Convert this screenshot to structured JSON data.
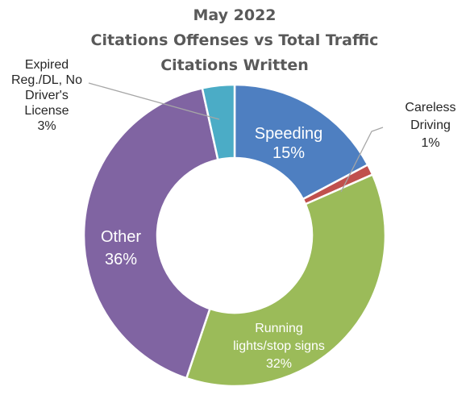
{
  "chart_data": {
    "type": "pie",
    "title": [
      "May 2022",
      "Citations Offenses vs Total Traffic",
      "Citations Written"
    ],
    "slices": [
      {
        "key": "speeding",
        "label": [
          "Speeding",
          "15%"
        ],
        "value": 15,
        "color": "#4e7fc1"
      },
      {
        "key": "careless",
        "label": [
          "Careless",
          "Driving",
          "1%"
        ],
        "value": 1,
        "color": "#c0504d"
      },
      {
        "key": "running",
        "label": [
          "Running",
          "lights/stop signs",
          "32%"
        ],
        "value": 32,
        "color": "#9bbb59"
      },
      {
        "key": "other",
        "label": [
          "Other",
          "36%"
        ],
        "value": 36,
        "color": "#8064a2"
      },
      {
        "key": "expired",
        "label": [
          "Expired",
          "Reg./DL, No",
          "Driver's",
          "License",
          "3%"
        ],
        "value": 3,
        "color": "#4bacc6"
      }
    ]
  }
}
